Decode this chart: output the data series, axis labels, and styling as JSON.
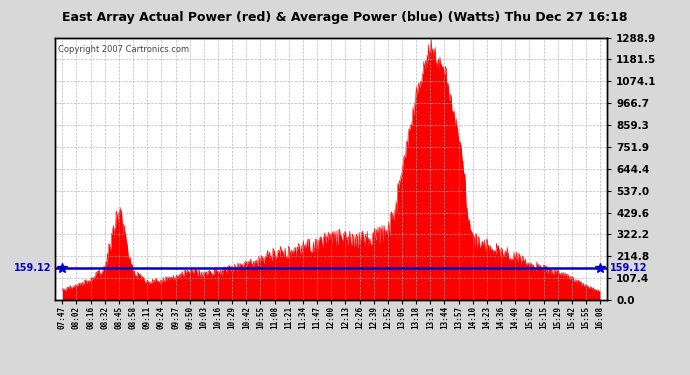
{
  "title": "East Array Actual Power (red) & Average Power (blue) (Watts) Thu Dec 27 16:18",
  "copyright": "Copyright 2007 Cartronics.com",
  "avg_power": 159.12,
  "ymax": 1288.9,
  "yticks": [
    0.0,
    107.4,
    214.8,
    322.2,
    429.6,
    537.0,
    644.4,
    751.9,
    859.3,
    966.7,
    1074.1,
    1181.5,
    1288.9
  ],
  "background_color": "#d8d8d8",
  "plot_bg": "#ffffff",
  "red_color": "#ff0000",
  "blue_color": "#0000cc",
  "x_labels": [
    "07:47",
    "08:02",
    "08:16",
    "08:32",
    "08:45",
    "08:58",
    "09:11",
    "09:24",
    "09:37",
    "09:50",
    "10:03",
    "10:16",
    "10:29",
    "10:42",
    "10:55",
    "11:08",
    "11:21",
    "11:34",
    "11:47",
    "12:00",
    "12:13",
    "12:26",
    "12:39",
    "12:52",
    "13:05",
    "13:18",
    "13:31",
    "13:44",
    "13:57",
    "14:10",
    "14:23",
    "14:36",
    "14:49",
    "15:02",
    "15:15",
    "15:29",
    "15:42",
    "15:55",
    "16:08"
  ],
  "power_values": [
    55,
    85,
    110,
    180,
    520,
    160,
    100,
    110,
    130,
    160,
    150,
    155,
    175,
    195,
    230,
    260,
    275,
    295,
    315,
    345,
    355,
    335,
    355,
    375,
    650,
    1050,
    1288.9,
    1180,
    850,
    340,
    310,
    275,
    240,
    205,
    175,
    155,
    120,
    80,
    45
  ]
}
